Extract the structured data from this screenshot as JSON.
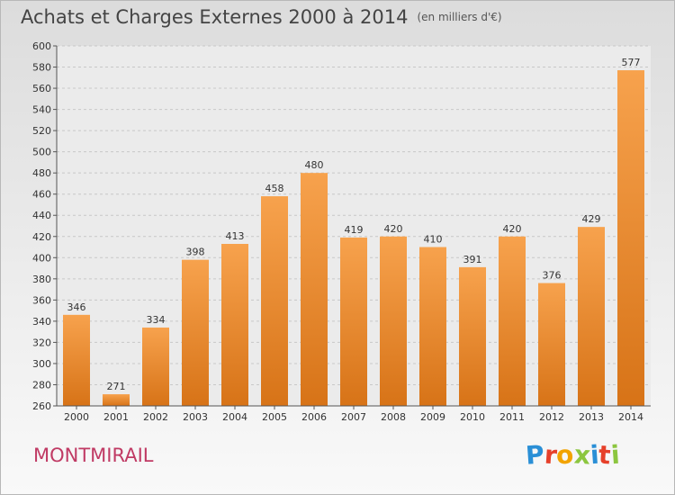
{
  "title": "Achats et Charges Externes 2000 à 2014",
  "subtitle": "(en milliers d'€)",
  "place": "MONTMIRAIL",
  "logo": {
    "text": "Proxiti",
    "letters": [
      "P",
      "r",
      "o",
      "x",
      "i",
      "t",
      "i"
    ],
    "colors": [
      "#2a8fd6",
      "#e6402a",
      "#f2a300",
      "#8cc63f",
      "#2a8fd6",
      "#e6402a",
      "#8cc63f"
    ]
  },
  "colors": {
    "bar_top": "#f7a24d",
    "bar_bottom": "#d77317",
    "grid": "#c8c8c8",
    "axis": "#555555",
    "label": "#333333"
  },
  "chart_data": {
    "type": "bar",
    "categories": [
      "2000",
      "2001",
      "2002",
      "2003",
      "2004",
      "2005",
      "2006",
      "2007",
      "2008",
      "2009",
      "2010",
      "2011",
      "2012",
      "2013",
      "2014"
    ],
    "values": [
      346,
      271,
      334,
      398,
      413,
      458,
      480,
      419,
      420,
      410,
      391,
      420,
      376,
      429,
      577
    ],
    "ylim": [
      260,
      600
    ],
    "yticks": [
      260,
      280,
      300,
      320,
      340,
      360,
      380,
      400,
      420,
      440,
      460,
      480,
      500,
      520,
      540,
      560,
      580,
      600
    ],
    "grid": true,
    "xlabel": "",
    "ylabel": ""
  }
}
